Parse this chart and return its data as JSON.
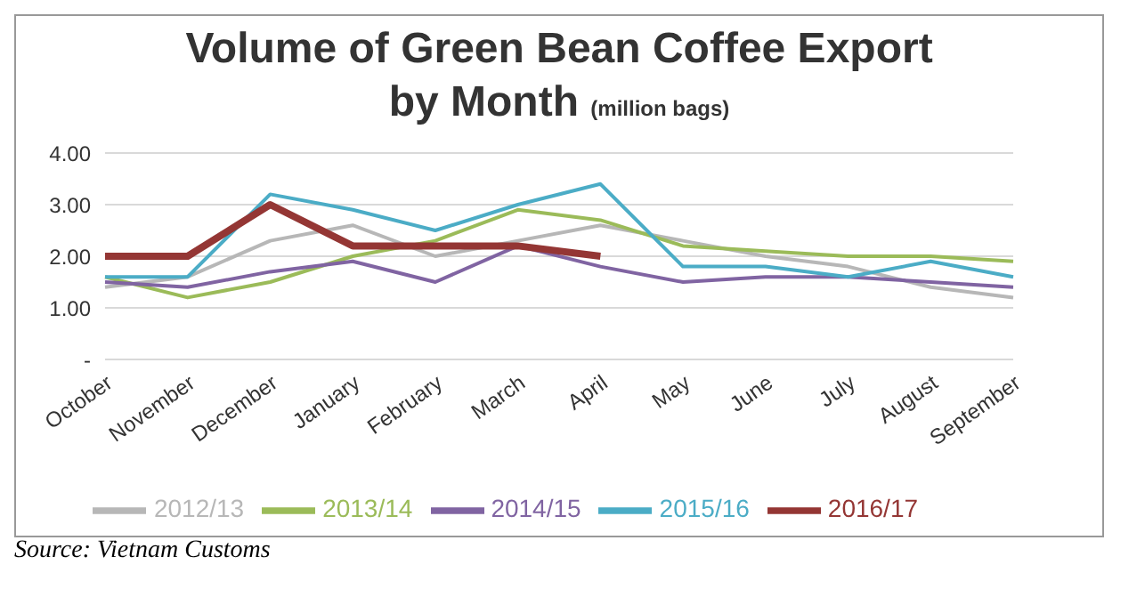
{
  "chart_data": {
    "type": "line",
    "title": "Volume of Green Bean Coffee Export",
    "subtitle": "by Month",
    "ylabel": "(million bags)",
    "categories": [
      "October",
      "November",
      "December",
      "January",
      "February",
      "March",
      "April",
      "May",
      "June",
      "July",
      "August",
      "September"
    ],
    "series": [
      {
        "name": "2012/13",
        "color": "#b7b7b7",
        "values": [
          1.4,
          1.6,
          2.3,
          2.6,
          2.0,
          2.3,
          2.6,
          2.3,
          2.0,
          1.8,
          1.4,
          1.2
        ]
      },
      {
        "name": "2013/14",
        "color": "#9bbb59",
        "values": [
          1.6,
          1.2,
          1.5,
          2.0,
          2.3,
          2.9,
          2.7,
          2.2,
          2.1,
          2.0,
          2.0,
          1.9
        ]
      },
      {
        "name": "2014/15",
        "color": "#8064a2",
        "values": [
          1.5,
          1.4,
          1.7,
          1.9,
          1.5,
          2.2,
          1.8,
          1.5,
          1.6,
          1.6,
          1.5,
          1.4
        ]
      },
      {
        "name": "2015/16",
        "color": "#4bacc6",
        "values": [
          1.6,
          1.6,
          3.2,
          2.9,
          2.5,
          3.0,
          3.4,
          1.8,
          1.8,
          1.6,
          1.9,
          1.6
        ]
      },
      {
        "name": "2016/17",
        "color": "#943634",
        "values": [
          2.0,
          2.0,
          3.0,
          2.2,
          2.2,
          2.2,
          2.0,
          null,
          null,
          null,
          null,
          null
        ]
      }
    ],
    "ylim": [
      0,
      4
    ],
    "yticks": [
      {
        "value": 0,
        "label": "-"
      },
      {
        "value": 1,
        "label": "1.00"
      },
      {
        "value": 2,
        "label": "2.00"
      },
      {
        "value": 3,
        "label": "3.00"
      },
      {
        "value": 4,
        "label": "4.00"
      }
    ],
    "grid": "y",
    "legend": "bottom",
    "marker": "none",
    "line_style": "solid",
    "annotations": [
      "Source: Vietnam Customs"
    ]
  }
}
